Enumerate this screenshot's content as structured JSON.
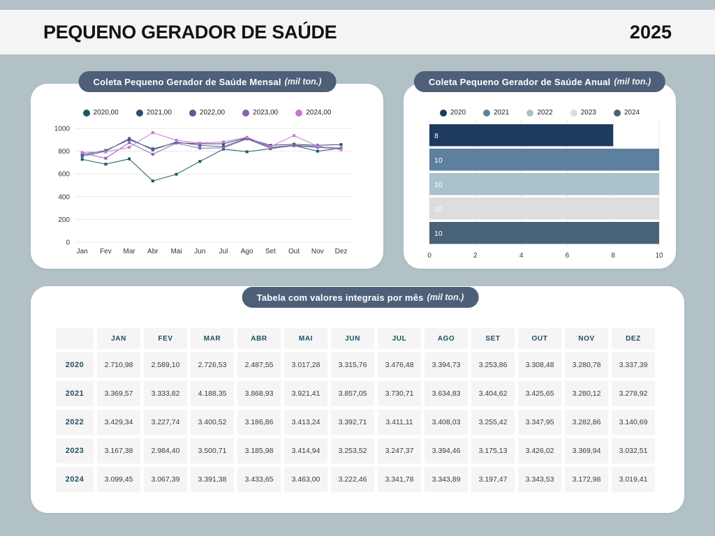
{
  "header": {
    "title": "PEQUENO GERADOR DE SAÚDE",
    "year": "2025"
  },
  "colors": {
    "background": "#b1c1c5",
    "top_strip": "#f4f4f6",
    "pill": "#4d6078",
    "table_accent": "#1d4d62"
  },
  "chart_data": [
    {
      "type": "line",
      "title": "Coleta Pequeno Gerador de Saúde Mensal",
      "unit": "(mil ton.)",
      "categories": [
        "Jan",
        "Fev",
        "Mar",
        "Abr",
        "Mai",
        "Jun",
        "Jul",
        "Ago",
        "Set",
        "Out",
        "Nov",
        "Dez"
      ],
      "series": [
        {
          "name": "2020,00",
          "color": "#1a5a64",
          "values": [
            728,
            686,
            732,
            538,
            597,
            710,
            818,
            795,
            822,
            850,
            800,
            826
          ]
        },
        {
          "name": "2021,00",
          "color": "#2e4d70",
          "values": [
            769,
            806,
            902,
            820,
            875,
            865,
            865,
            916,
            851,
            861,
            851,
            858
          ]
        },
        {
          "name": "2022,00",
          "color": "#51608f",
          "values": [
            755,
            799,
            912,
            810,
            881,
            851,
            840,
            912,
            834,
            851,
            840,
            826
          ]
        },
        {
          "name": "2023,00",
          "color": "#8a64ae",
          "values": [
            783,
            738,
            875,
            773,
            871,
            826,
            830,
            908,
            826,
            847,
            834,
            818
          ]
        },
        {
          "name": "2024,00",
          "color": "#c779cf",
          "values": [
            789,
            793,
            834,
            963,
            896,
            871,
            881,
            922,
            840,
            937,
            845,
            812
          ]
        }
      ],
      "ylim": [
        0,
        1000
      ],
      "yticks": [
        1000,
        800,
        600,
        400,
        200,
        0
      ],
      "grid": true,
      "legend_position": "top"
    },
    {
      "type": "bar",
      "orientation": "horizontal",
      "title": "Coleta Pequeno Gerador de Saúde Anual ",
      "unit": "(mil ton.)",
      "categories": [
        "2020",
        "2021",
        "2022",
        "2023",
        "2024"
      ],
      "values": [
        8,
        10,
        10,
        10,
        10
      ],
      "bar_labels": [
        "8",
        "10",
        "10",
        "10",
        "10"
      ],
      "colors": [
        "#1e3a5e",
        "#5d80a1",
        "#a9c2cc",
        "#dcdedd",
        "#486278"
      ],
      "xlim": [
        0,
        10
      ],
      "xticks": [
        0,
        2,
        4,
        6,
        8,
        10
      ],
      "grid": true,
      "legend_position": "top"
    },
    {
      "type": "table",
      "title": "Tabela com valores integrais por mês",
      "unit": "(mil ton.)",
      "columns": [
        "",
        "JAN",
        "FEV",
        "MAR",
        "ABR",
        "MAI",
        "JUN",
        "JUL",
        "AGO",
        "SET",
        "OUT",
        "NOV",
        "DEZ"
      ],
      "rows": [
        {
          "year": "2020",
          "values": [
            "2.710,98",
            "2.589,10",
            "2.726,53",
            "2.487,55",
            "3.017,28",
            "3.315,76",
            "3.476,48",
            "3.394,73",
            "3.253,86",
            "3.308,48",
            "3.280,78",
            "3.337,39"
          ]
        },
        {
          "year": "2021",
          "values": [
            "3.369,57",
            "3.333,82",
            "4.188,35",
            "3.868,93",
            "3.921,41",
            "3.857,05",
            "3.730,71",
            "3.634,83",
            "3.404,62",
            "3.425,65",
            "3.280,12",
            "3.278,92"
          ]
        },
        {
          "year": "2022",
          "values": [
            "3.429,34",
            "3.227,74",
            "3.400,52",
            "3.186,86",
            "3.413,24",
            "3.392,71",
            "3.411,11",
            "3.408,03",
            "3.255,42",
            "3.347,95",
            "3.282,86",
            "3.140,69"
          ]
        },
        {
          "year": "2023",
          "values": [
            "3.167,38",
            "2.984,40",
            "3.500,71",
            "3.185,98",
            "3.414,94",
            "3.253,52",
            "3.247,37",
            "3.394,46",
            "3.175,13",
            "3.426,02",
            "3.369,94",
            "3.032,51"
          ]
        },
        {
          "year": "2024",
          "values": [
            "3.099,45",
            "3.067,39",
            "3.391,38",
            "3.433,65",
            "3.463,00",
            "3.222,46",
            "3.341,78",
            "3.343,89",
            "3.197,47",
            "3.343,53",
            "3.172,98",
            "3.019,41"
          ]
        }
      ]
    }
  ]
}
